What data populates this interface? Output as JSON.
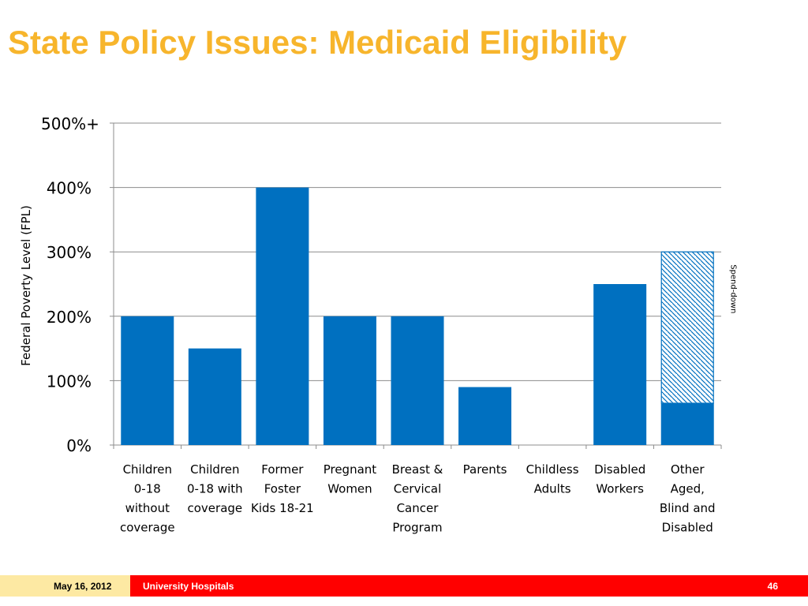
{
  "slide": {
    "title": "State Policy Issues: Medicaid Eligibility"
  },
  "footer": {
    "date": "May 16, 2012",
    "organization": "University Hospitals",
    "page_number": "46"
  },
  "colors": {
    "title": "#f7b52c",
    "bar": "#0070c0",
    "footer_left": "#fde9a3",
    "footer_right": "#ff0000"
  },
  "chart_data": {
    "type": "bar",
    "ylabel": "Federal Poverty Level (FPL)",
    "xlabel": "",
    "ylim": [
      0,
      500
    ],
    "y_ticks": [
      {
        "value": 0,
        "label": "0%"
      },
      {
        "value": 100,
        "label": "100%"
      },
      {
        "value": 200,
        "label": "200%"
      },
      {
        "value": 300,
        "label": "300%"
      },
      {
        "value": 400,
        "label": "400%"
      },
      {
        "value": 500,
        "label": "500%+"
      }
    ],
    "grid": true,
    "categories": [
      [
        "Children",
        "0-18",
        "without",
        "coverage"
      ],
      [
        "Children",
        "0-18 with",
        "coverage"
      ],
      [
        "Former",
        "Foster",
        "Kids 18-21"
      ],
      [
        "Pregnant",
        "Women"
      ],
      [
        "Breast &",
        "Cervical",
        "Cancer",
        "Program"
      ],
      [
        "Parents"
      ],
      [
        "Childless",
        "Adults"
      ],
      [
        "Disabled",
        "Workers"
      ],
      [
        "Other",
        "Aged,",
        "Blind and",
        "Disabled"
      ]
    ],
    "values": [
      200,
      150,
      400,
      200,
      200,
      90,
      0,
      250,
      65
    ],
    "annotations": [
      {
        "category_index": 8,
        "type": "hatched-range",
        "from": 65,
        "to": 300,
        "label": "Spend-down"
      }
    ]
  }
}
